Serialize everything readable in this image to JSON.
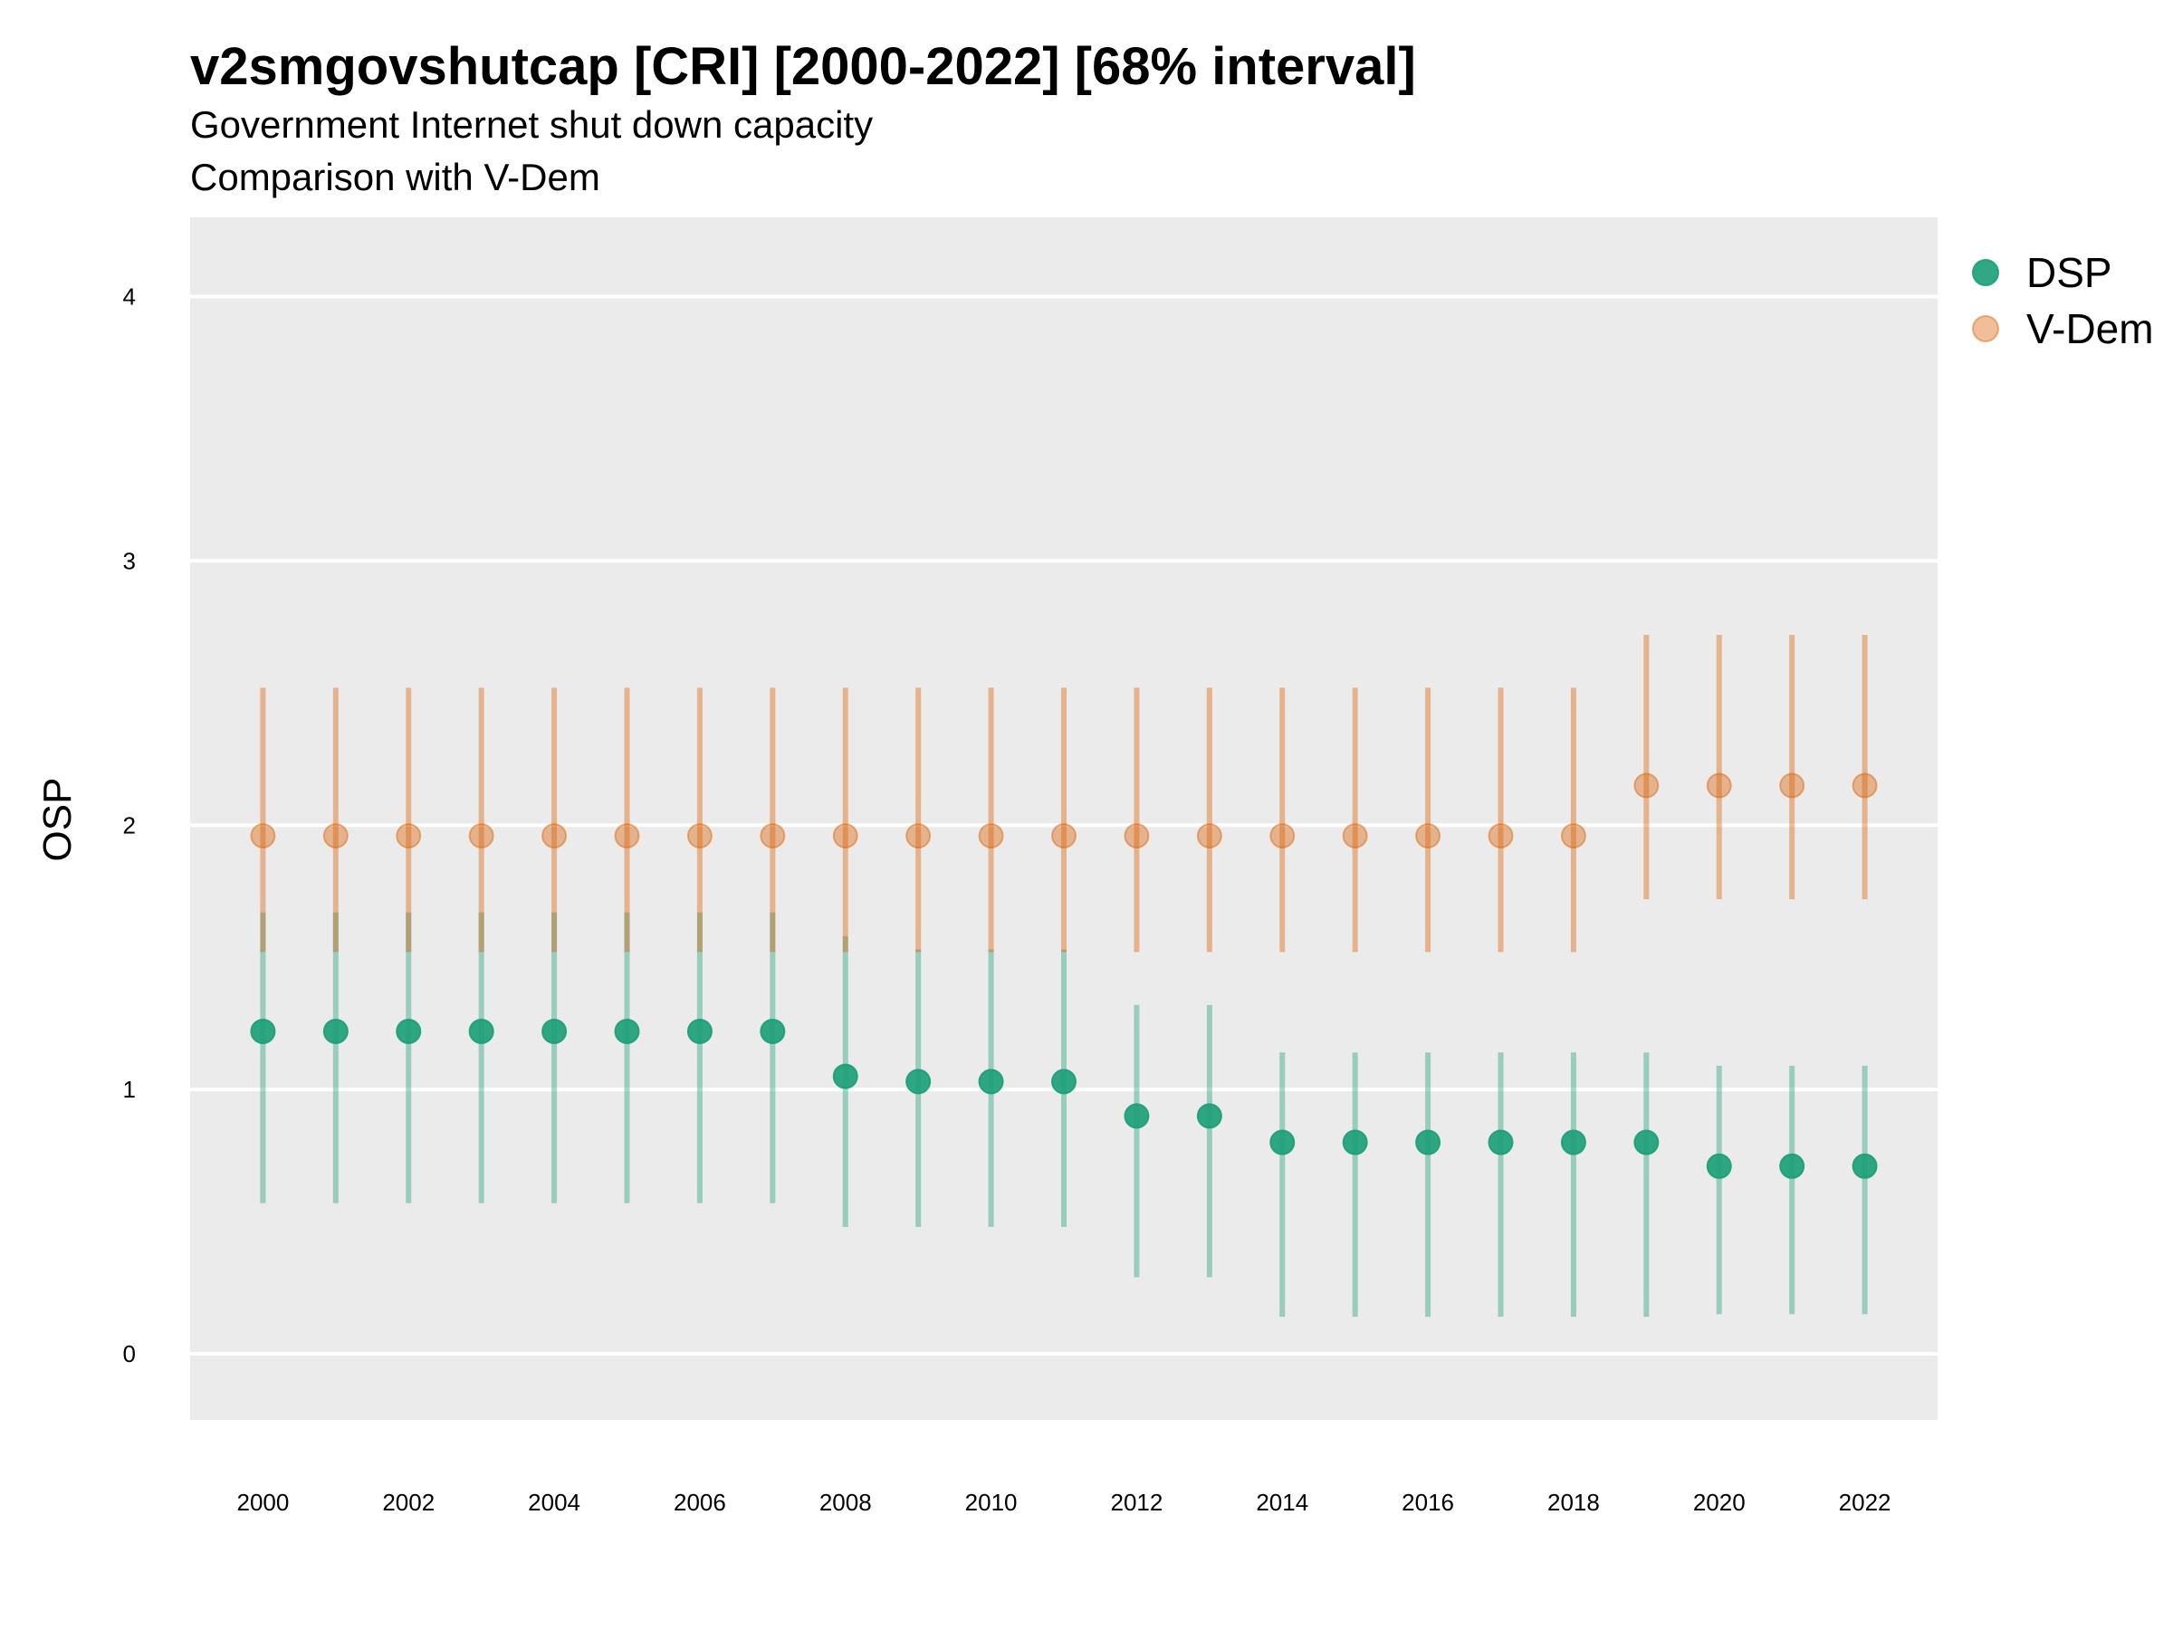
{
  "title": "v2smgovshutcap [CRI] [2000-2022] [68% interval]",
  "subtitle_lines": [
    "Government Internet shut down capacity",
    "Comparison with V-Dem"
  ],
  "chart_data": {
    "type": "scatter",
    "subtype": "point-range",
    "title": "v2smgovshutcap [CRI] [2000-2022] [68% interval]",
    "subtitle": "Government Internet shut down capacity / Comparison with V-Dem",
    "xlabel": "",
    "ylabel": "OSP",
    "x": [
      2000,
      2001,
      2002,
      2003,
      2004,
      2005,
      2006,
      2007,
      2008,
      2009,
      2010,
      2011,
      2012,
      2013,
      2014,
      2015,
      2016,
      2017,
      2018,
      2019,
      2020,
      2021,
      2022
    ],
    "x_tick_labels": [
      "2000",
      "2002",
      "2004",
      "2006",
      "2008",
      "2010",
      "2012",
      "2014",
      "2016",
      "2018",
      "2020",
      "2022"
    ],
    "y_tick_labels": [
      "0",
      "1",
      "2",
      "3",
      "4"
    ],
    "ylim": [
      -0.25,
      4.3
    ],
    "xlim": [
      1999.0,
      2023.0
    ],
    "grid": "horizontal major lines, white on grey panel",
    "legend_position": "right-top",
    "series": [
      {
        "name": "DSP",
        "color": "#1b9e77",
        "values": [
          1.22,
          1.22,
          1.22,
          1.22,
          1.22,
          1.22,
          1.22,
          1.22,
          1.05,
          1.03,
          1.03,
          1.03,
          0.9,
          0.9,
          0.8,
          0.8,
          0.8,
          0.8,
          0.8,
          0.8,
          0.71,
          0.71,
          0.71
        ],
        "lower": [
          0.57,
          0.57,
          0.57,
          0.57,
          0.57,
          0.57,
          0.57,
          0.57,
          0.48,
          0.48,
          0.48,
          0.48,
          0.29,
          0.29,
          0.14,
          0.14,
          0.14,
          0.14,
          0.14,
          0.14,
          0.15,
          0.15,
          0.15
        ],
        "upper": [
          1.67,
          1.67,
          1.67,
          1.67,
          1.67,
          1.67,
          1.67,
          1.67,
          1.58,
          1.53,
          1.53,
          1.53,
          1.32,
          1.32,
          1.14,
          1.14,
          1.14,
          1.14,
          1.14,
          1.14,
          1.09,
          1.09,
          1.09
        ]
      },
      {
        "name": "V-Dem",
        "color": "#d95f02",
        "values": [
          1.96,
          1.96,
          1.96,
          1.96,
          1.96,
          1.96,
          1.96,
          1.96,
          1.96,
          1.96,
          1.96,
          1.96,
          1.96,
          1.96,
          1.96,
          1.96,
          1.96,
          1.96,
          1.96,
          2.15,
          2.15,
          2.15,
          2.15
        ],
        "lower": [
          1.52,
          1.52,
          1.52,
          1.52,
          1.52,
          1.52,
          1.52,
          1.52,
          1.52,
          1.52,
          1.52,
          1.52,
          1.52,
          1.52,
          1.52,
          1.52,
          1.52,
          1.52,
          1.52,
          1.72,
          1.72,
          1.72,
          1.72
        ],
        "upper": [
          2.52,
          2.52,
          2.52,
          2.52,
          2.52,
          2.52,
          2.52,
          2.52,
          2.52,
          2.52,
          2.52,
          2.52,
          2.52,
          2.52,
          2.52,
          2.52,
          2.52,
          2.52,
          2.52,
          2.72,
          2.72,
          2.72,
          2.72
        ]
      }
    ]
  },
  "colors": {
    "panel_bg": "#ebebeb",
    "grid": "#ffffff"
  }
}
